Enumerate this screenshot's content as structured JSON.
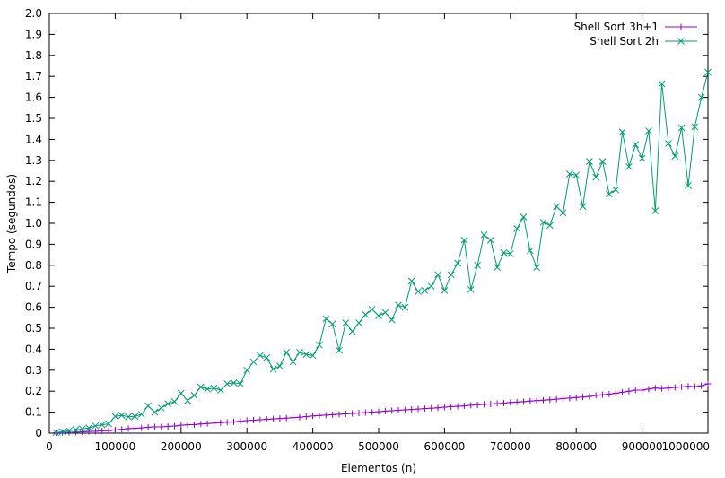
{
  "chart_data": {
    "type": "line",
    "title": "",
    "xlabel": "Elementos (n)",
    "ylabel": "Tempo (segundos)",
    "xlim": [
      0,
      1000000
    ],
    "ylim": [
      0,
      2.0
    ],
    "x_ticks": [
      "0",
      "100000",
      "200000",
      "300000",
      "400000",
      "500000",
      "600000",
      "700000",
      "800000",
      "900000",
      "1000000"
    ],
    "y_ticks": [
      "0",
      "0.1",
      "0.2",
      "0.3",
      "0.4",
      "0.5",
      "0.6",
      "0.7",
      "0.8",
      "0.9",
      "1.0",
      "1.1",
      "1.2",
      "1.3",
      "1.4",
      "1.5",
      "1.6",
      "1.7",
      "1.8",
      "1.9",
      "2.0"
    ],
    "grid": false,
    "legend_position": "top-right",
    "x": [
      10000,
      20000,
      30000,
      40000,
      50000,
      60000,
      70000,
      80000,
      90000,
      100000,
      110000,
      120000,
      130000,
      140000,
      150000,
      160000,
      170000,
      180000,
      190000,
      200000,
      210000,
      220000,
      230000,
      240000,
      250000,
      260000,
      270000,
      280000,
      290000,
      300000,
      310000,
      320000,
      330000,
      340000,
      350000,
      360000,
      370000,
      380000,
      390000,
      400000,
      410000,
      420000,
      430000,
      440000,
      450000,
      460000,
      470000,
      480000,
      490000,
      500000,
      510000,
      520000,
      530000,
      540000,
      550000,
      560000,
      570000,
      580000,
      590000,
      600000,
      610000,
      620000,
      630000,
      640000,
      650000,
      660000,
      670000,
      680000,
      690000,
      700000,
      710000,
      720000,
      730000,
      740000,
      750000,
      760000,
      770000,
      780000,
      790000,
      800000,
      810000,
      820000,
      830000,
      840000,
      850000,
      860000,
      870000,
      880000,
      890000,
      900000,
      910000,
      920000,
      930000,
      940000,
      950000,
      960000,
      970000,
      980000,
      990000,
      1000000
    ],
    "series": [
      {
        "name": "Shell Sort 3h+1",
        "color": "#9400d3",
        "marker": "plus",
        "values": [
          0.002,
          0.003,
          0.004,
          0.005,
          0.006,
          0.008,
          0.009,
          0.011,
          0.012,
          0.015,
          0.018,
          0.022,
          0.023,
          0.025,
          0.028,
          0.03,
          0.03,
          0.032,
          0.034,
          0.038,
          0.04,
          0.041,
          0.044,
          0.046,
          0.048,
          0.05,
          0.052,
          0.054,
          0.057,
          0.06,
          0.062,
          0.064,
          0.066,
          0.068,
          0.07,
          0.072,
          0.074,
          0.076,
          0.079,
          0.082,
          0.084,
          0.086,
          0.088,
          0.09,
          0.092,
          0.094,
          0.096,
          0.098,
          0.1,
          0.102,
          0.105,
          0.107,
          0.109,
          0.111,
          0.113,
          0.115,
          0.117,
          0.119,
          0.121,
          0.124,
          0.126,
          0.128,
          0.13,
          0.133,
          0.135,
          0.137,
          0.139,
          0.141,
          0.143,
          0.146,
          0.148,
          0.15,
          0.153,
          0.155,
          0.157,
          0.159,
          0.162,
          0.165,
          0.167,
          0.17,
          0.172,
          0.175,
          0.18,
          0.183,
          0.186,
          0.19,
          0.195,
          0.2,
          0.205,
          0.205,
          0.21,
          0.215,
          0.213,
          0.215,
          0.218,
          0.22,
          0.223,
          0.222,
          0.226,
          0.235
        ]
      },
      {
        "name": "Shell Sort 2h",
        "color": "#009e73",
        "marker": "cross",
        "values": [
          0.003,
          0.007,
          0.012,
          0.016,
          0.02,
          0.025,
          0.035,
          0.04,
          0.045,
          0.08,
          0.085,
          0.078,
          0.08,
          0.09,
          0.13,
          0.1,
          0.12,
          0.14,
          0.15,
          0.19,
          0.155,
          0.18,
          0.22,
          0.21,
          0.215,
          0.205,
          0.235,
          0.24,
          0.235,
          0.3,
          0.34,
          0.37,
          0.36,
          0.305,
          0.32,
          0.385,
          0.34,
          0.385,
          0.375,
          0.37,
          0.42,
          0.545,
          0.52,
          0.395,
          0.525,
          0.485,
          0.525,
          0.565,
          0.59,
          0.56,
          0.575,
          0.54,
          0.61,
          0.6,
          0.725,
          0.675,
          0.68,
          0.7,
          0.755,
          0.68,
          0.755,
          0.81,
          0.92,
          0.685,
          0.8,
          0.945,
          0.92,
          0.79,
          0.86,
          0.855,
          0.975,
          1.03,
          0.87,
          0.79,
          1.005,
          0.99,
          1.08,
          1.05,
          1.235,
          1.23,
          1.08,
          1.295,
          1.22,
          1.295,
          1.14,
          1.16,
          1.435,
          1.27,
          1.375,
          1.31,
          1.44,
          1.06,
          1.665,
          1.38,
          1.32,
          1.455,
          1.18,
          1.46,
          1.6,
          1.72
        ]
      }
    ]
  }
}
